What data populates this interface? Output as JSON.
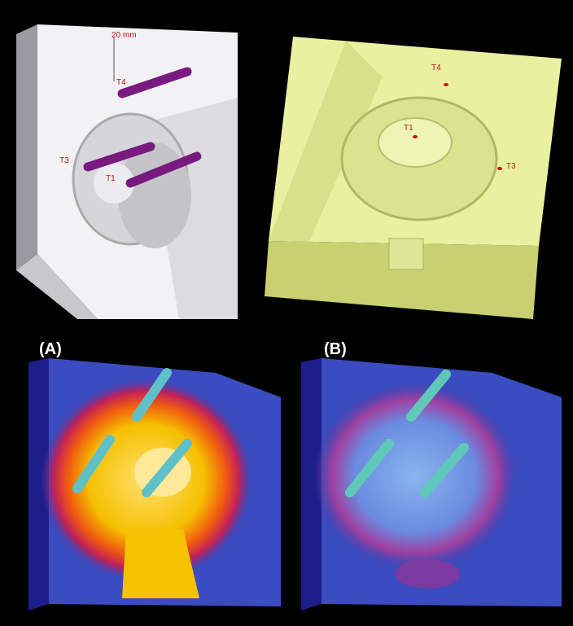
{
  "top_left": {
    "scale_label": "20 mm",
    "markers": [
      "T4",
      "T3",
      "T1"
    ]
  },
  "top_right": {
    "markers": [
      "T4",
      "T1",
      "T3"
    ]
  },
  "bottom_left": {
    "label": "(A)"
  },
  "bottom_right": {
    "label": "(B)"
  }
}
